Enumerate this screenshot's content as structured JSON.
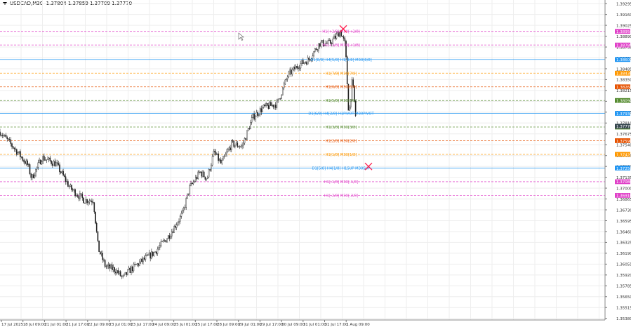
{
  "header": {
    "symbol": "USDCAD,M30",
    "ohlc": "1.37804 1.37859 1.37709 1.37770"
  },
  "chart_data": {
    "type": "candlestick",
    "ylim": [
      1.3536,
      1.3934
    ],
    "y_ticks": [
      "1.39295",
      "1.39160",
      "1.39025",
      "1.38890",
      "1.38755",
      "1.38620",
      "1.38485",
      "1.38350",
      "1.38215",
      "1.38080",
      "1.37945",
      "1.37810",
      "1.37675",
      "1.37540",
      "1.37405",
      "1.37270",
      "1.37135",
      "1.37000",
      "1.36865",
      "1.36730",
      "1.36595",
      "1.36460",
      "1.36325",
      "1.36190",
      "1.36055",
      "1.35920",
      "1.35785",
      "1.35650",
      "1.35515",
      "1.35380"
    ],
    "x_labels": [
      "17 Jul 2025",
      "18 Jul 09:00",
      "21 Jul 01:00",
      "21 Jul 17:00",
      "22 Jul 09:00",
      "23 Jul 01:00",
      "23 Jul 17:00",
      "24 Jul 09:00",
      "25 Jul 01:00",
      "25 Jul 17:00",
      "28 Jul 09:00",
      "29 Jul 01:00",
      "29 Jul 17:00",
      "30 Jul 09:00",
      "31 Jul 01:00",
      "31 Jul 17:00",
      "1 Aug 09:00"
    ],
    "price_anchors": [
      [
        0,
        1.377
      ],
      [
        20,
        1.375
      ],
      [
        40,
        1.3728
      ],
      [
        45,
        1.3712
      ],
      [
        60,
        1.3738
      ],
      [
        80,
        1.373
      ],
      [
        100,
        1.37
      ],
      [
        120,
        1.3685
      ],
      [
        133,
        1.3685
      ],
      [
        140,
        1.3625
      ],
      [
        150,
        1.3603
      ],
      [
        165,
        1.3598
      ],
      [
        175,
        1.3588
      ],
      [
        185,
        1.3598
      ],
      [
        200,
        1.3608
      ],
      [
        220,
        1.362
      ],
      [
        240,
        1.364
      ],
      [
        260,
        1.3668
      ],
      [
        270,
        1.37
      ],
      [
        285,
        1.372
      ],
      [
        295,
        1.3712
      ],
      [
        305,
        1.3745
      ],
      [
        315,
        1.373
      ],
      [
        330,
        1.3755
      ],
      [
        345,
        1.3752
      ],
      [
        360,
        1.3788
      ],
      [
        375,
        1.38
      ],
      [
        395,
        1.3805
      ],
      [
        410,
        1.384
      ],
      [
        425,
        1.3853
      ],
      [
        440,
        1.386
      ],
      [
        455,
        1.388
      ],
      [
        470,
        1.388
      ],
      [
        485,
        1.3895
      ],
      [
        492,
        1.3878
      ],
      [
        497,
        1.379
      ],
      [
        502,
        1.3835
      ],
      [
        508,
        1.3777
      ]
    ],
    "levels": [
      {
        "label": "H1[+2/8] M30[+2/8]",
        "price": 1.3895,
        "price_label": "1.38950",
        "color": "#e040c8",
        "style": "dash"
      },
      {
        "label": "H1[+1/8] M30[+1/8]",
        "price": 1.3878,
        "price_label": "1.38780",
        "color": "#e040c8",
        "style": "dash"
      },
      {
        "label": "D1[8/8] H4[5/8] H1[8/8] M30[8/8]",
        "price": 1.386,
        "price_label": "1.38600",
        "color": "#2196f3",
        "style": "solid"
      },
      {
        "label": "H1[7/8] M30[7/8]",
        "price": 1.3843,
        "price_label": "1.38430",
        "color": "#ff9800",
        "style": "dash"
      },
      {
        "label": "H1[6/8] M30[6/8]",
        "price": 1.3826,
        "price_label": "1.38260",
        "color": "#e65100",
        "style": "dash"
      },
      {
        "label": "H1[5/8] M30[5/8]",
        "price": 1.3809,
        "price_label": "1.38090",
        "color": "#558b2f",
        "style": "dash"
      },
      {
        "label": "D1[6/8] H4[2/8] H1PIVOT M30PIVOT",
        "price": 1.3793,
        "price_label": "1.37930",
        "color": "#2196f3",
        "style": "solid"
      },
      {
        "label": "H1[3/8] M30[3/8]",
        "price": 1.3776,
        "price_label": "1.37760",
        "color": "#558b2f",
        "style": "dash"
      },
      {
        "label": "H1[2/8] M30[2/8]",
        "price": 1.3759,
        "price_label": "1.37590",
        "color": "#e65100",
        "style": "dash"
      },
      {
        "label": "H1[1/8] M30[1/8]",
        "price": 1.3742,
        "price_label": "1.37420",
        "color": "#ff9800",
        "style": "dash"
      },
      {
        "label": "D1[5/8] H4[1/8] H1SUP M30SUP",
        "price": 1.3725,
        "price_label": "1.37250",
        "color": "#2196f3",
        "style": "solid"
      },
      {
        "label": "H1[-1/8] M30[-1/8]",
        "price": 1.3708,
        "price_label": "1.37080",
        "color": "#e040c8",
        "style": "dash"
      },
      {
        "label": "H1[-2/8] M30[-2/8]",
        "price": 1.3691,
        "price_label": "1.36910",
        "color": "#e040c8",
        "style": "dash"
      }
    ],
    "current_price": {
      "value": 1.3777,
      "label": "1.37770",
      "color": "#37474f"
    },
    "markers": [
      {
        "type": "x",
        "price": 1.3898,
        "bar": 489,
        "color": "#ff2050"
      },
      {
        "type": "x",
        "price": 1.3727,
        "bar": 525,
        "color": "#ff2050"
      }
    ]
  }
}
